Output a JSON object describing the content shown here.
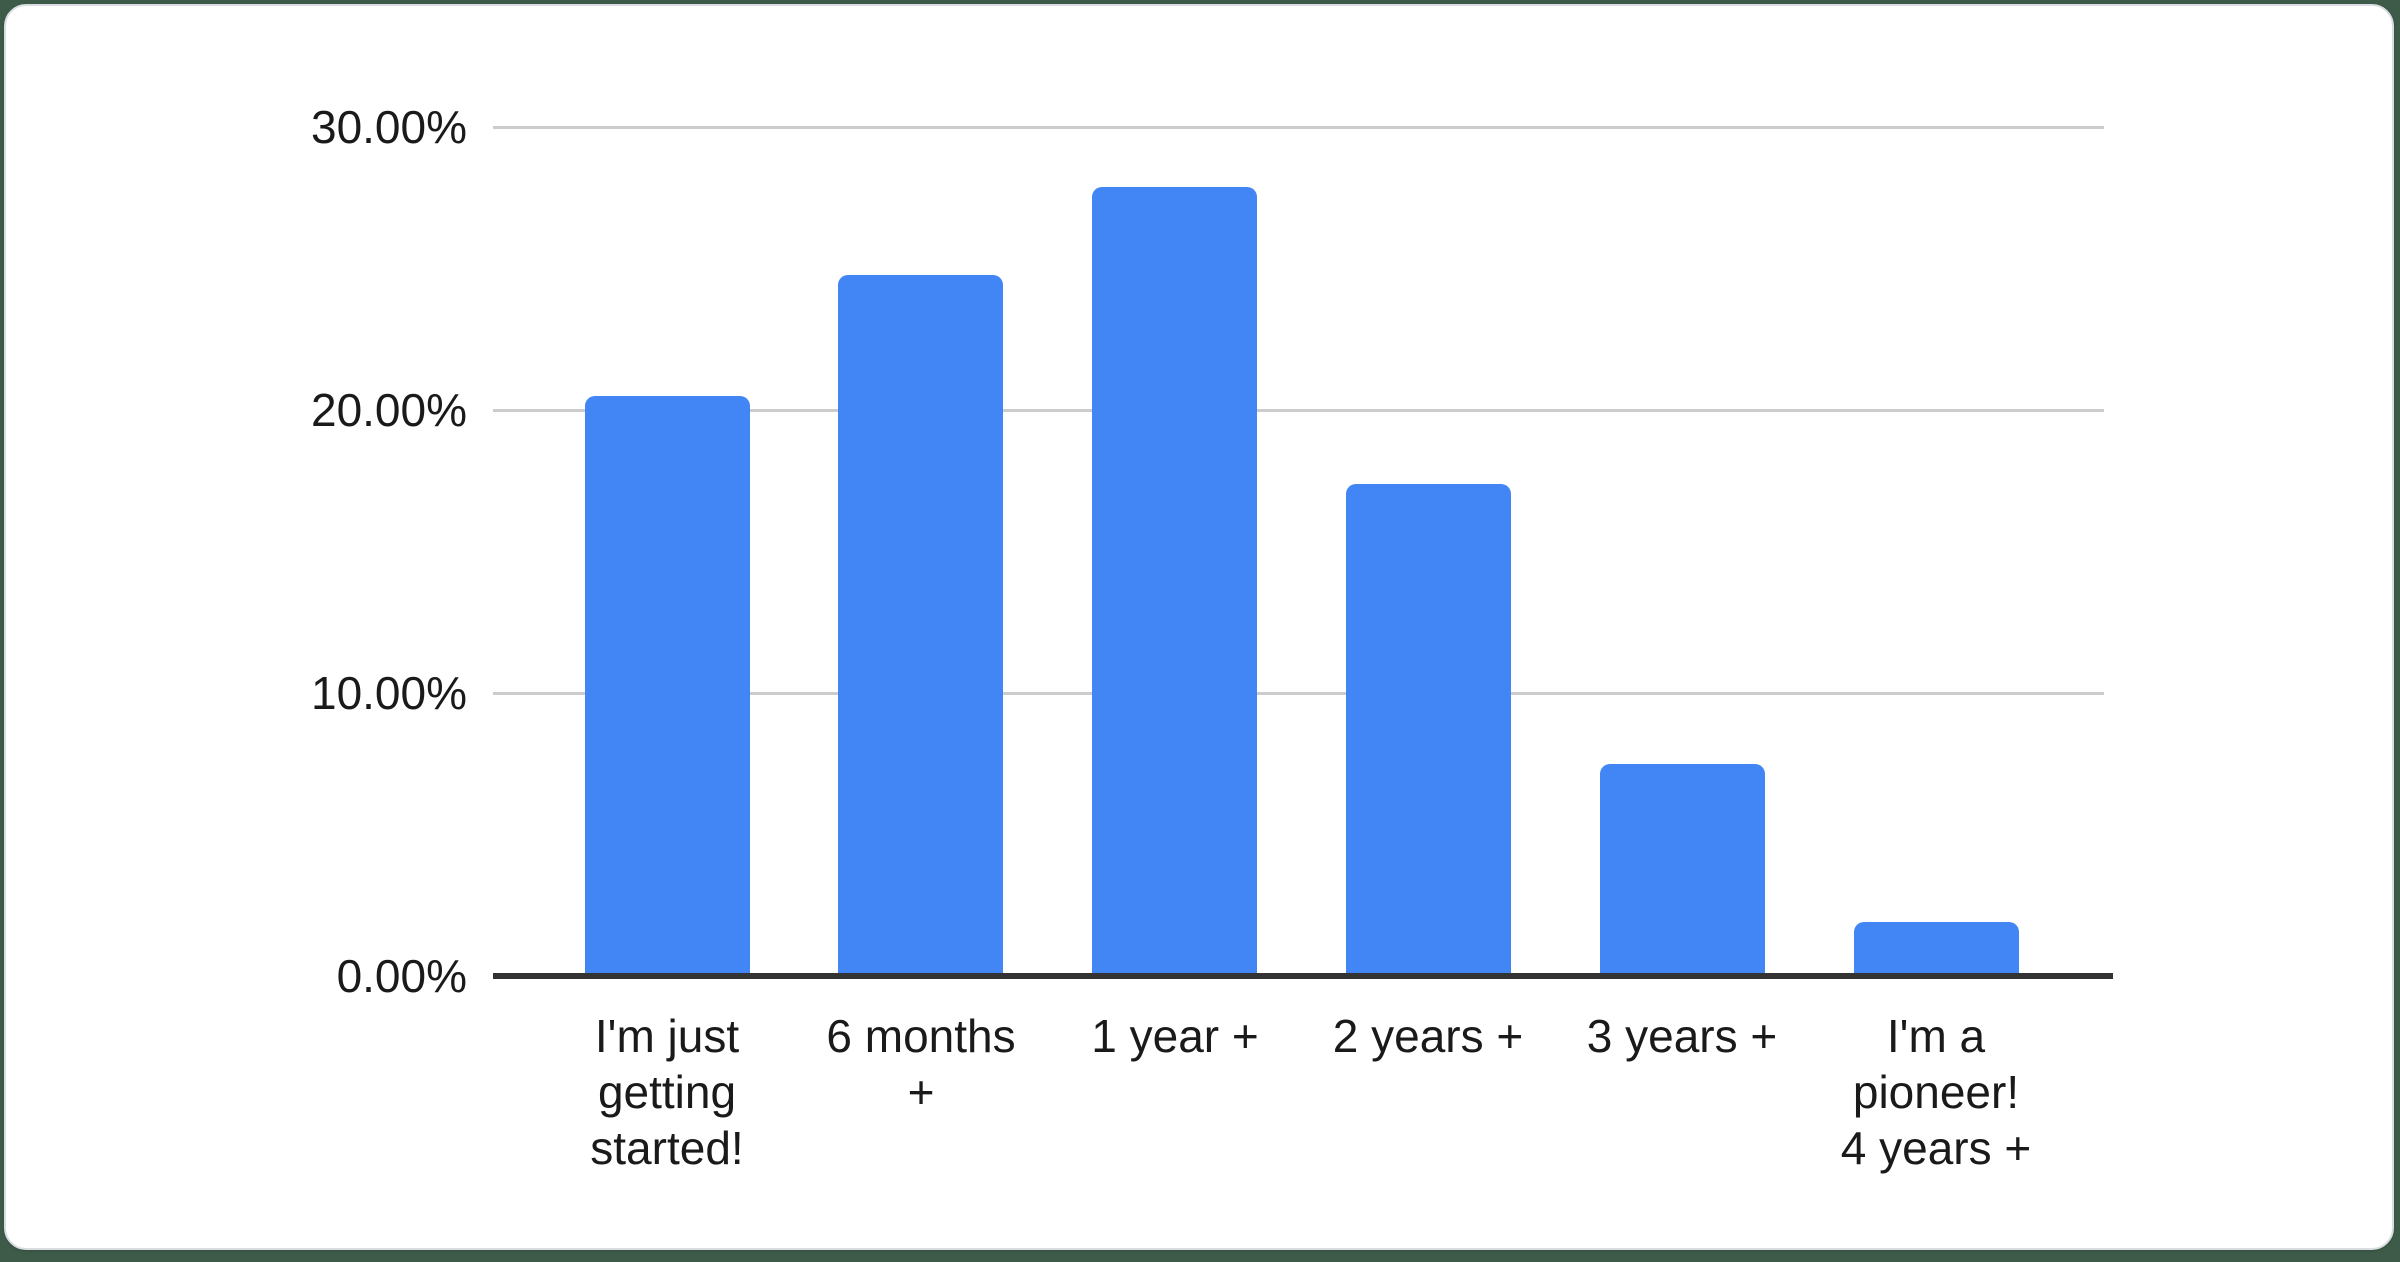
{
  "page": {
    "background_color": "#3E5B49",
    "card_background": "#FFFFFF",
    "card_border_color": "#D9DDE1"
  },
  "chart_data": {
    "type": "bar",
    "title": "",
    "xlabel": "",
    "ylabel": "",
    "categories": [
      "I'm just getting started!",
      "6 months +",
      "1 year +",
      "2 years +",
      "3 years +",
      "I'm a pioneer! 4 years +"
    ],
    "categories_display": [
      "I'm just\ngetting\nstarted!",
      "6 months\n+",
      "1 year +",
      "2 years +",
      "3 years +",
      "I'm a\npioneer!\n4 years +"
    ],
    "values": [
      20.5,
      24.8,
      27.9,
      17.4,
      7.5,
      1.9
    ],
    "value_unit": "%",
    "ylim": [
      0,
      30
    ],
    "y_ticks": [
      "0.00%",
      "10.00%",
      "20.00%",
      "30.00%"
    ],
    "y_tick_values": [
      0,
      10,
      20,
      30
    ],
    "grid": true,
    "legend_position": "none",
    "bar_color": "#4285F4",
    "gridline_color": "#CCCCCC",
    "axis_line_color": "#333333",
    "tick_label_color": "#1A1A1A"
  }
}
